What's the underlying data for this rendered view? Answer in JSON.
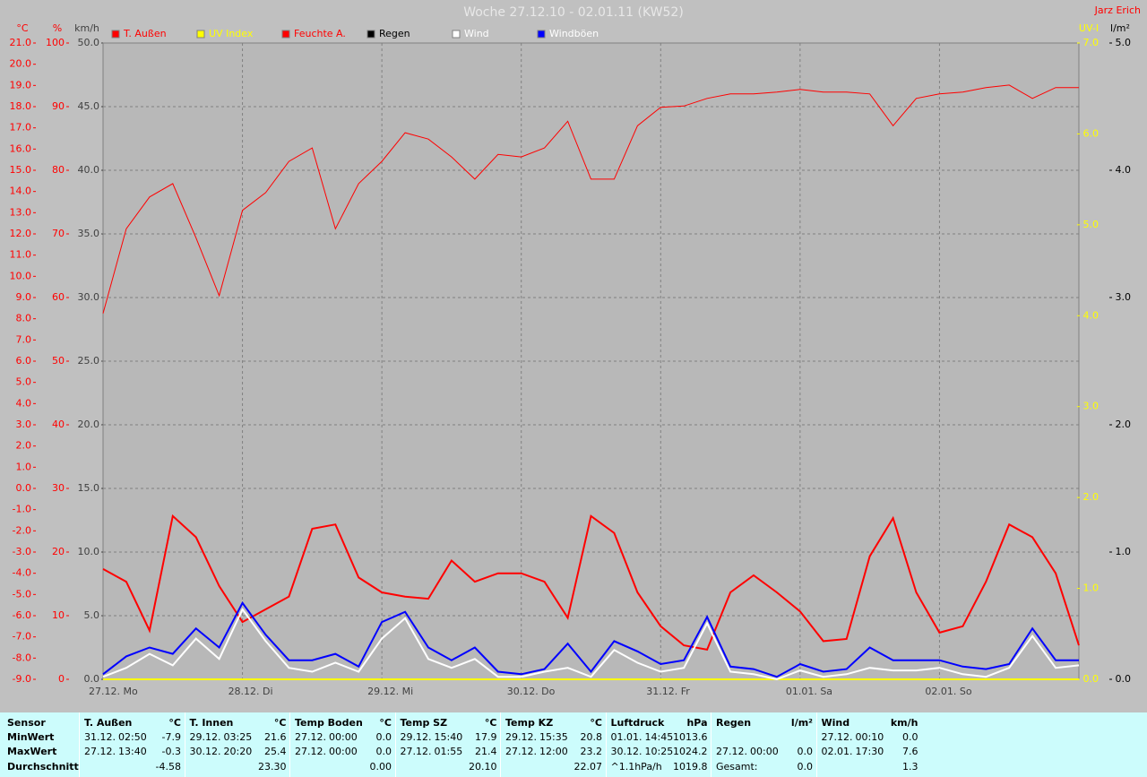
{
  "chart_data": {
    "type": "line",
    "title": "Woche 27.12.10 - 02.01.11 (KW52)",
    "author": "Jarz Erich",
    "grid": true,
    "x": [
      0,
      4,
      8,
      12,
      16,
      20,
      24,
      28,
      32,
      36,
      40,
      44,
      48,
      52,
      56,
      60,
      64,
      68,
      72,
      76,
      80,
      84,
      88,
      92,
      96,
      100,
      104,
      108,
      112,
      116,
      120,
      124,
      128,
      132,
      136,
      140,
      144,
      148,
      152,
      156,
      160,
      164,
      168
    ],
    "xlim": [
      0,
      168
    ],
    "xticks": [
      {
        "value": 0,
        "label": "27.12. Mo"
      },
      {
        "value": 24,
        "label": "28.12. Di"
      },
      {
        "value": 48,
        "label": "29.12. Mi"
      },
      {
        "value": 72,
        "label": "30.12. Do"
      },
      {
        "value": 96,
        "label": "31.12. Fr"
      },
      {
        "value": 120,
        "label": "01.01. Sa"
      },
      {
        "value": 144,
        "label": "02.01. So"
      }
    ],
    "axes": [
      {
        "label": "°C",
        "color": "#ff0000",
        "ylim": [
          -9,
          21
        ],
        "yticks": [
          {
            "value": -9,
            "label": "-9.0"
          },
          {
            "value": -8,
            "label": "-8.0"
          },
          {
            "value": -7,
            "label": "-7.0"
          },
          {
            "value": -6,
            "label": "-6.0"
          },
          {
            "value": -5,
            "label": "-5.0"
          },
          {
            "value": -4,
            "label": "-4.0"
          },
          {
            "value": -3,
            "label": "-3.0"
          },
          {
            "value": -2,
            "label": "-2.0"
          },
          {
            "value": -1,
            "label": "-1.0"
          },
          {
            "value": 0,
            "label": "0.0"
          },
          {
            "value": 1,
            "label": "1.0"
          },
          {
            "value": 2,
            "label": "2.0"
          },
          {
            "value": 3,
            "label": "3.0"
          },
          {
            "value": 4,
            "label": "4.0"
          },
          {
            "value": 5,
            "label": "5.0"
          },
          {
            "value": 6,
            "label": "6.0"
          },
          {
            "value": 7,
            "label": "7.0"
          },
          {
            "value": 8,
            "label": "8.0"
          },
          {
            "value": 9,
            "label": "9.0"
          },
          {
            "value": 10,
            "label": "10.0"
          },
          {
            "value": 11,
            "label": "11.0"
          },
          {
            "value": 12,
            "label": "12.0"
          },
          {
            "value": 13,
            "label": "13.0"
          },
          {
            "value": 14,
            "label": "14.0"
          },
          {
            "value": 15,
            "label": "15.0"
          },
          {
            "value": 16,
            "label": "16.0"
          },
          {
            "value": 17,
            "label": "17.0"
          },
          {
            "value": 18,
            "label": "18.0"
          },
          {
            "value": 19,
            "label": "19.0"
          },
          {
            "value": 20,
            "label": "20.0"
          },
          {
            "value": 21,
            "label": "21.0"
          }
        ]
      },
      {
        "label": "%",
        "color": "#ff0000",
        "ylim": [
          0,
          100
        ],
        "yticks": [
          0,
          10,
          20,
          30,
          40,
          50,
          60,
          70,
          80,
          90,
          100
        ]
      },
      {
        "label": "km/h",
        "color": "#404040",
        "ylim": [
          0,
          50
        ],
        "yticks": [
          {
            "value": 0,
            "label": "0.0"
          },
          {
            "value": 5,
            "label": "5.0"
          },
          {
            "value": 10,
            "label": "10.0"
          },
          {
            "value": 15,
            "label": "15.0"
          },
          {
            "value": 20,
            "label": "20.0"
          },
          {
            "value": 25,
            "label": "25.0"
          },
          {
            "value": 30,
            "label": "30.0"
          },
          {
            "value": 35,
            "label": "35.0"
          },
          {
            "value": 40,
            "label": "40.0"
          },
          {
            "value": 45,
            "label": "45.0"
          },
          {
            "value": 50,
            "label": "50.0"
          }
        ]
      },
      {
        "label": "UV-I",
        "color": "#ffff00",
        "ylim": [
          0,
          7
        ],
        "yticks": [
          {
            "value": 0,
            "label": "0.0"
          },
          {
            "value": 1,
            "label": "1.0"
          },
          {
            "value": 2,
            "label": "2.0"
          },
          {
            "value": 3,
            "label": "3.0"
          },
          {
            "value": 4,
            "label": "4.0"
          },
          {
            "value": 5,
            "label": "5.0"
          },
          {
            "value": 6,
            "label": "6.0"
          },
          {
            "value": 7,
            "label": "7.0"
          }
        ]
      },
      {
        "label": "l/m²",
        "color": "#000000",
        "ylim": [
          0,
          5
        ],
        "yticks": [
          {
            "value": 0,
            "label": "0.0"
          },
          {
            "value": 1,
            "label": "1.0"
          },
          {
            "value": 2,
            "label": "2.0"
          },
          {
            "value": 3,
            "label": "3.0"
          },
          {
            "value": 4,
            "label": "4.0"
          },
          {
            "value": 5,
            "label": "5.0"
          }
        ]
      }
    ],
    "series": [
      {
        "name": "T. Außen",
        "color": "#ff0000",
        "axis": 0,
        "width": 2,
        "values": [
          -3.8,
          -4.4,
          -6.7,
          -1.3,
          -2.3,
          -4.6,
          -6.3,
          -5.7,
          -5.1,
          -1.9,
          -1.7,
          -4.2,
          -4.9,
          -5.1,
          -5.2,
          -3.4,
          -4.4,
          -4.0,
          -4.0,
          -4.4,
          -6.1,
          -1.3,
          -2.1,
          -4.9,
          -6.5,
          -7.4,
          -7.6,
          -4.9,
          -4.1,
          -4.9,
          -5.8,
          -7.2,
          -7.1,
          -3.2,
          -1.4,
          -4.9,
          -6.8,
          -6.5,
          -4.4,
          -1.7,
          -2.3,
          -4.0,
          -7.4
        ]
      },
      {
        "name": "UV Index",
        "color": "#ffff00",
        "axis": 3,
        "width": 2,
        "values": [
          0,
          0,
          0,
          0,
          0,
          0,
          0,
          0,
          0,
          0,
          0,
          0,
          0,
          0,
          0,
          0,
          0,
          0,
          0,
          0,
          0,
          0,
          0,
          0,
          0,
          0,
          0,
          0,
          0,
          0,
          0,
          0,
          0,
          0,
          0,
          0,
          0,
          0,
          0,
          0,
          0,
          0,
          0
        ]
      },
      {
        "name": "Feuchte A.",
        "color": "#ff0000",
        "axis": 1,
        "width": 1,
        "values": [
          57.5,
          70.8,
          75.8,
          77.9,
          69.4,
          60.3,
          73.7,
          76.5,
          81.4,
          83.5,
          70.8,
          77.9,
          81.4,
          85.9,
          84.9,
          82.1,
          78.6,
          82.5,
          82.1,
          83.5,
          87.7,
          78.6,
          78.6,
          87.0,
          89.9,
          90.1,
          91.3,
          92.0,
          92.0,
          92.3,
          92.7,
          92.3,
          92.3,
          92.0,
          87.0,
          91.3,
          92.0,
          92.3,
          93.0,
          93.4,
          91.3,
          93.0,
          93.0
        ]
      },
      {
        "name": "Regen",
        "color": "#000000",
        "axis": 4,
        "width": 1,
        "values": [
          0,
          0,
          0,
          0,
          0,
          0,
          0,
          0,
          0,
          0,
          0,
          0,
          0,
          0,
          0,
          0,
          0,
          0,
          0,
          0,
          0,
          0,
          0,
          0,
          0,
          0,
          0,
          0,
          0,
          0,
          0,
          0,
          0,
          0,
          0,
          0,
          0,
          0,
          0,
          0,
          0,
          0,
          0
        ]
      },
      {
        "name": "Wind",
        "color": "#ffffff",
        "axis": 2,
        "width": 2,
        "values": [
          0.2,
          0.9,
          2.0,
          1.1,
          3.2,
          1.6,
          5.5,
          3.0,
          0.9,
          0.6,
          1.3,
          0.6,
          3.2,
          4.8,
          1.6,
          0.9,
          1.6,
          0.2,
          0.2,
          0.6,
          0.9,
          0.2,
          2.3,
          1.3,
          0.6,
          0.9,
          4.4,
          0.6,
          0.4,
          0,
          0.7,
          0.2,
          0.4,
          0.9,
          0.7,
          0.7,
          0.9,
          0.4,
          0.2,
          0.9,
          3.4,
          0.9,
          1.1
        ]
      },
      {
        "name": "Windböen",
        "color": "#0000ff",
        "axis": 2,
        "width": 2,
        "values": [
          0.4,
          1.8,
          2.5,
          2.0,
          4.0,
          2.5,
          6.0,
          3.5,
          1.5,
          1.5,
          2.0,
          1.0,
          4.5,
          5.3,
          2.5,
          1.5,
          2.5,
          0.6,
          0.4,
          0.8,
          2.8,
          0.6,
          3.0,
          2.2,
          1.2,
          1.5,
          4.9,
          1.0,
          0.8,
          0.2,
          1.2,
          0.6,
          0.8,
          2.5,
          1.5,
          1.5,
          1.5,
          1.0,
          0.8,
          1.2,
          4.0,
          1.5,
          1.5
        ]
      }
    ]
  },
  "stats": {
    "header": "Sensor",
    "row_labels": [
      "MinWert",
      "MaxWert",
      "Durchschnitt"
    ],
    "groups": [
      {
        "name": "T. Außen",
        "unit": "°C",
        "rows": [
          [
            "31.12.",
            "02:50",
            "-7.9"
          ],
          [
            "27.12.",
            "13:40",
            "-0.3"
          ],
          [
            "-4.58"
          ]
        ]
      },
      {
        "name": "T. Innen",
        "unit": "°C",
        "rows": [
          [
            "29.12.",
            "03:25",
            "21.6"
          ],
          [
            "30.12.",
            "20:20",
            "25.4"
          ],
          [
            "23.30"
          ]
        ]
      },
      {
        "name": "Temp Boden",
        "unit": "°C",
        "rows": [
          [
            "27.12.",
            "00:00",
            "0.0"
          ],
          [
            "27.12.",
            "00:00",
            "0.0"
          ],
          [
            "0.00"
          ]
        ]
      },
      {
        "name": "Temp SZ",
        "unit": "°C",
        "rows": [
          [
            "29.12.",
            "15:40",
            "17.9"
          ],
          [
            "27.12.",
            "01:55",
            "21.4"
          ],
          [
            "20.10"
          ]
        ]
      },
      {
        "name": "Temp KZ",
        "unit": "°C",
        "rows": [
          [
            "29.12.",
            "15:35",
            "20.8"
          ],
          [
            "27.12.",
            "12:00",
            "23.2"
          ],
          [
            "22.07"
          ]
        ]
      },
      {
        "name": "Luftdruck",
        "unit": "hPa",
        "rows": [
          [
            "01.01.",
            "14:45",
            "1013.6"
          ],
          [
            "30.12.",
            "10:25",
            "1024.2"
          ],
          [
            "^1.1hPa/h",
            "1019.8"
          ]
        ]
      },
      {
        "name": "Regen",
        "unit": "l/m²",
        "rows": [
          [],
          [
            "27.12.",
            "00:00",
            "0.0"
          ],
          [
            "Gesamt:",
            "0.0"
          ]
        ]
      },
      {
        "name": "Wind",
        "unit": "km/h",
        "rows": [
          [
            "27.12.",
            "00:10",
            "0.0"
          ],
          [
            "02.01.",
            "17:30",
            "7.6"
          ],
          [
            "1.3"
          ]
        ]
      }
    ]
  }
}
